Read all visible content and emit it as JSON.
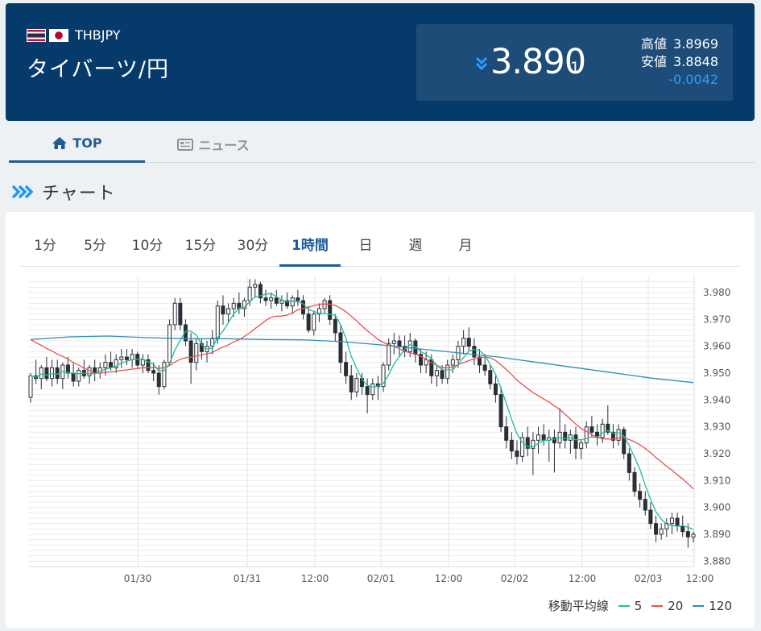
{
  "header": {
    "pair_code": "THBJPY",
    "pair_name": "タイバーツ/円",
    "price_main": "3.890",
    "price_sub": "1",
    "high_label": "高値",
    "high_value": "3.8969",
    "low_label": "安値",
    "low_value": "3.8848",
    "change": "-0.0042",
    "icons": {
      "from_flag": "thailand-flag",
      "to_flag": "japan-flag",
      "trend": "double-chevron-down-icon"
    },
    "colors": {
      "background": "#063a6b",
      "price_box": "#1e4c78",
      "change": "#2f9bff",
      "down": "#2f9bff"
    }
  },
  "tabs": [
    {
      "label": "TOP",
      "icon": "home-icon",
      "active": true
    },
    {
      "label": "ニュース",
      "icon": "newspaper-icon",
      "active": false
    }
  ],
  "section": {
    "title": "チャート",
    "icon": "triple-chevron-right-icon"
  },
  "periods": [
    {
      "label": "1分",
      "active": false
    },
    {
      "label": "5分",
      "active": false
    },
    {
      "label": "10分",
      "active": false
    },
    {
      "label": "15分",
      "active": false
    },
    {
      "label": "30分",
      "active": false
    },
    {
      "label": "1時間",
      "active": true
    },
    {
      "label": "日",
      "active": false
    },
    {
      "label": "週",
      "active": false
    },
    {
      "label": "月",
      "active": false
    }
  ],
  "legend": {
    "title": "移動平均線",
    "items": [
      {
        "label": "5",
        "color": "#1fbf9c"
      },
      {
        "label": "20",
        "color": "#e8524d"
      },
      {
        "label": "120",
        "color": "#2e8fb5"
      }
    ]
  },
  "chart_data": {
    "type": "candlestick",
    "ylim": [
      3.878,
      3.986
    ],
    "yticks": [
      "3.980",
      "3.970",
      "3.960",
      "3.950",
      "3.940",
      "3.930",
      "3.920",
      "3.910",
      "3.900",
      "3.890",
      "3.880"
    ],
    "xticks": [
      "01/30",
      "01/31",
      "12:00",
      "02/01",
      "12:00",
      "02/02",
      "12:00",
      "02/03",
      "12:00"
    ],
    "grid": true,
    "up_color": "#ffffff",
    "down_color": "#2b2f36",
    "candles": [
      [
        3.941,
        3.95,
        3.939,
        3.949
      ],
      [
        3.949,
        3.955,
        3.946,
        3.948
      ],
      [
        3.948,
        3.953,
        3.944,
        3.952
      ],
      [
        3.952,
        3.956,
        3.947,
        3.948
      ],
      [
        3.948,
        3.955,
        3.945,
        3.952
      ],
      [
        3.952,
        3.955,
        3.946,
        3.948
      ],
      [
        3.948,
        3.954,
        3.944,
        3.953
      ],
      [
        3.953,
        3.956,
        3.948,
        3.95
      ],
      [
        3.95,
        3.954,
        3.945,
        3.947
      ],
      [
        3.947,
        3.952,
        3.945,
        3.951
      ],
      [
        3.951,
        3.955,
        3.948,
        3.949
      ],
      [
        3.949,
        3.953,
        3.946,
        3.952
      ],
      [
        3.952,
        3.955,
        3.947,
        3.95
      ],
      [
        3.95,
        3.954,
        3.948,
        3.952
      ],
      [
        3.952,
        3.957,
        3.949,
        3.954
      ],
      [
        3.954,
        3.958,
        3.951,
        3.952
      ],
      [
        3.952,
        3.957,
        3.95,
        3.955
      ],
      [
        3.955,
        3.959,
        3.952,
        3.956
      ],
      [
        3.956,
        3.959,
        3.953,
        3.955
      ],
      [
        3.955,
        3.959,
        3.952,
        3.957
      ],
      [
        3.957,
        3.958,
        3.952,
        3.953
      ],
      [
        3.953,
        3.957,
        3.95,
        3.955
      ],
      [
        3.955,
        3.957,
        3.95,
        3.951
      ],
      [
        3.951,
        3.954,
        3.947,
        3.95
      ],
      [
        3.95,
        3.953,
        3.942,
        3.945
      ],
      [
        3.945,
        3.955,
        3.944,
        3.954
      ],
      [
        3.954,
        3.97,
        3.953,
        3.968
      ],
      [
        3.968,
        3.978,
        3.966,
        3.976
      ],
      [
        3.976,
        3.978,
        3.966,
        3.968
      ],
      [
        3.968,
        3.97,
        3.96,
        3.962
      ],
      [
        3.962,
        3.965,
        3.946,
        3.954
      ],
      [
        3.954,
        3.963,
        3.951,
        3.961
      ],
      [
        3.961,
        3.963,
        3.955,
        3.958
      ],
      [
        3.958,
        3.962,
        3.954,
        3.96
      ],
      [
        3.96,
        3.966,
        3.957,
        3.963
      ],
      [
        3.963,
        3.977,
        3.961,
        3.975
      ],
      [
        3.975,
        3.979,
        3.968,
        3.972
      ],
      [
        3.972,
        3.976,
        3.969,
        3.974
      ],
      [
        3.974,
        3.978,
        3.971,
        3.976
      ],
      [
        3.976,
        3.98,
        3.972,
        3.974
      ],
      [
        3.974,
        3.978,
        3.971,
        3.977
      ],
      [
        3.977,
        3.985,
        3.975,
        3.982
      ],
      [
        3.982,
        3.985,
        3.978,
        3.983
      ],
      [
        3.983,
        3.984,
        3.976,
        3.978
      ],
      [
        3.978,
        3.981,
        3.975,
        3.977
      ],
      [
        3.977,
        3.98,
        3.974,
        3.978
      ],
      [
        3.978,
        3.981,
        3.975,
        3.976
      ],
      [
        3.976,
        3.979,
        3.973,
        3.977
      ],
      [
        3.977,
        3.98,
        3.974,
        3.975
      ],
      [
        3.975,
        3.979,
        3.972,
        3.978
      ],
      [
        3.978,
        3.981,
        3.975,
        3.977
      ],
      [
        3.977,
        3.979,
        3.97,
        3.972
      ],
      [
        3.972,
        3.975,
        3.965,
        3.966
      ],
      [
        3.966,
        3.973,
        3.964,
        3.972
      ],
      [
        3.972,
        3.976,
        3.969,
        3.974
      ],
      [
        3.974,
        3.978,
        3.972,
        3.977
      ],
      [
        3.977,
        3.979,
        3.968,
        3.97
      ],
      [
        3.97,
        3.972,
        3.962,
        3.965
      ],
      [
        3.965,
        3.968,
        3.95,
        3.954
      ],
      [
        3.954,
        3.958,
        3.946,
        3.949
      ],
      [
        3.949,
        3.953,
        3.94,
        3.943
      ],
      [
        3.943,
        3.95,
        3.941,
        3.948
      ],
      [
        3.948,
        3.95,
        3.942,
        3.945
      ],
      [
        3.945,
        3.948,
        3.935,
        3.942
      ],
      [
        3.942,
        3.948,
        3.94,
        3.946
      ],
      [
        3.946,
        3.949,
        3.94,
        3.945
      ],
      [
        3.945,
        3.954,
        3.943,
        3.953
      ],
      [
        3.953,
        3.963,
        3.951,
        3.961
      ],
      [
        3.961,
        3.965,
        3.957,
        3.962
      ],
      [
        3.962,
        3.964,
        3.956,
        3.96
      ],
      [
        3.96,
        3.964,
        3.956,
        3.958
      ],
      [
        3.958,
        3.965,
        3.956,
        3.962
      ],
      [
        3.962,
        3.963,
        3.954,
        3.957
      ],
      [
        3.957,
        3.959,
        3.95,
        3.953
      ],
      [
        3.953,
        3.958,
        3.95,
        3.955
      ],
      [
        3.955,
        3.957,
        3.946,
        3.949
      ],
      [
        3.949,
        3.953,
        3.945,
        3.951
      ],
      [
        3.951,
        3.953,
        3.946,
        3.948
      ],
      [
        3.948,
        3.955,
        3.946,
        3.953
      ],
      [
        3.953,
        3.957,
        3.95,
        3.955
      ],
      [
        3.955,
        3.962,
        3.952,
        3.96
      ],
      [
        3.96,
        3.966,
        3.957,
        3.963
      ],
      [
        3.963,
        3.967,
        3.958,
        3.96
      ],
      [
        3.96,
        3.963,
        3.953,
        3.956
      ],
      [
        3.956,
        3.959,
        3.95,
        3.953
      ],
      [
        3.953,
        3.957,
        3.949,
        3.951
      ],
      [
        3.951,
        3.953,
        3.944,
        3.946
      ],
      [
        3.946,
        3.949,
        3.939,
        3.942
      ],
      [
        3.942,
        3.945,
        3.928,
        3.93
      ],
      [
        3.93,
        3.934,
        3.922,
        3.925
      ],
      [
        3.925,
        3.928,
        3.918,
        3.921
      ],
      [
        3.921,
        3.925,
        3.916,
        3.919
      ],
      [
        3.919,
        3.928,
        3.917,
        3.926
      ],
      [
        3.926,
        3.93,
        3.919,
        3.922
      ],
      [
        3.922,
        3.928,
        3.912,
        3.925
      ],
      [
        3.925,
        3.93,
        3.92,
        3.927
      ],
      [
        3.927,
        3.931,
        3.923,
        3.925
      ],
      [
        3.925,
        3.929,
        3.917,
        3.926
      ],
      [
        3.926,
        3.929,
        3.913,
        3.924
      ],
      [
        3.924,
        3.937,
        3.922,
        3.928
      ],
      [
        3.928,
        3.931,
        3.922,
        3.925
      ],
      [
        3.925,
        3.929,
        3.92,
        3.927
      ],
      [
        3.927,
        3.93,
        3.918,
        3.922
      ],
      [
        3.922,
        3.925,
        3.918,
        3.924
      ],
      [
        3.924,
        3.932,
        3.922,
        3.93
      ],
      [
        3.93,
        3.934,
        3.926,
        3.928
      ],
      [
        3.928,
        3.931,
        3.923,
        3.926
      ],
      [
        3.926,
        3.933,
        3.924,
        3.931
      ],
      [
        3.931,
        3.938,
        3.927,
        3.928
      ],
      [
        3.928,
        3.931,
        3.922,
        3.925
      ],
      [
        3.925,
        3.931,
        3.923,
        3.929
      ],
      [
        3.929,
        3.93,
        3.918,
        3.92
      ],
      [
        3.92,
        3.922,
        3.91,
        3.913
      ],
      [
        3.913,
        3.915,
        3.904,
        3.906
      ],
      [
        3.906,
        3.909,
        3.9,
        3.903
      ],
      [
        3.903,
        3.906,
        3.897,
        3.899
      ],
      [
        3.899,
        3.902,
        3.892,
        3.894
      ],
      [
        3.894,
        3.897,
        3.887,
        3.89
      ],
      [
        3.89,
        3.894,
        3.888,
        3.892
      ],
      [
        3.892,
        3.896,
        3.889,
        3.894
      ],
      [
        3.894,
        3.898,
        3.89,
        3.896
      ],
      [
        3.896,
        3.898,
        3.891,
        3.893
      ],
      [
        3.893,
        3.897,
        3.889,
        3.891
      ],
      [
        3.891,
        3.894,
        3.885,
        3.889
      ],
      [
        3.889,
        3.891,
        3.887,
        3.89
      ]
    ],
    "series": [
      {
        "name": "5",
        "color": "#1fbf9c"
      },
      {
        "name": "20",
        "color": "#e8524d"
      },
      {
        "name": "120",
        "color": "#2e8fb5",
        "values": [
          3.9625,
          3.9635,
          3.9638,
          3.9632,
          3.9628,
          3.9628,
          3.9625,
          3.9624,
          3.9617,
          3.9605,
          3.959,
          3.9575,
          3.956,
          3.954,
          3.952,
          3.95,
          3.948,
          3.9465
        ]
      }
    ]
  }
}
